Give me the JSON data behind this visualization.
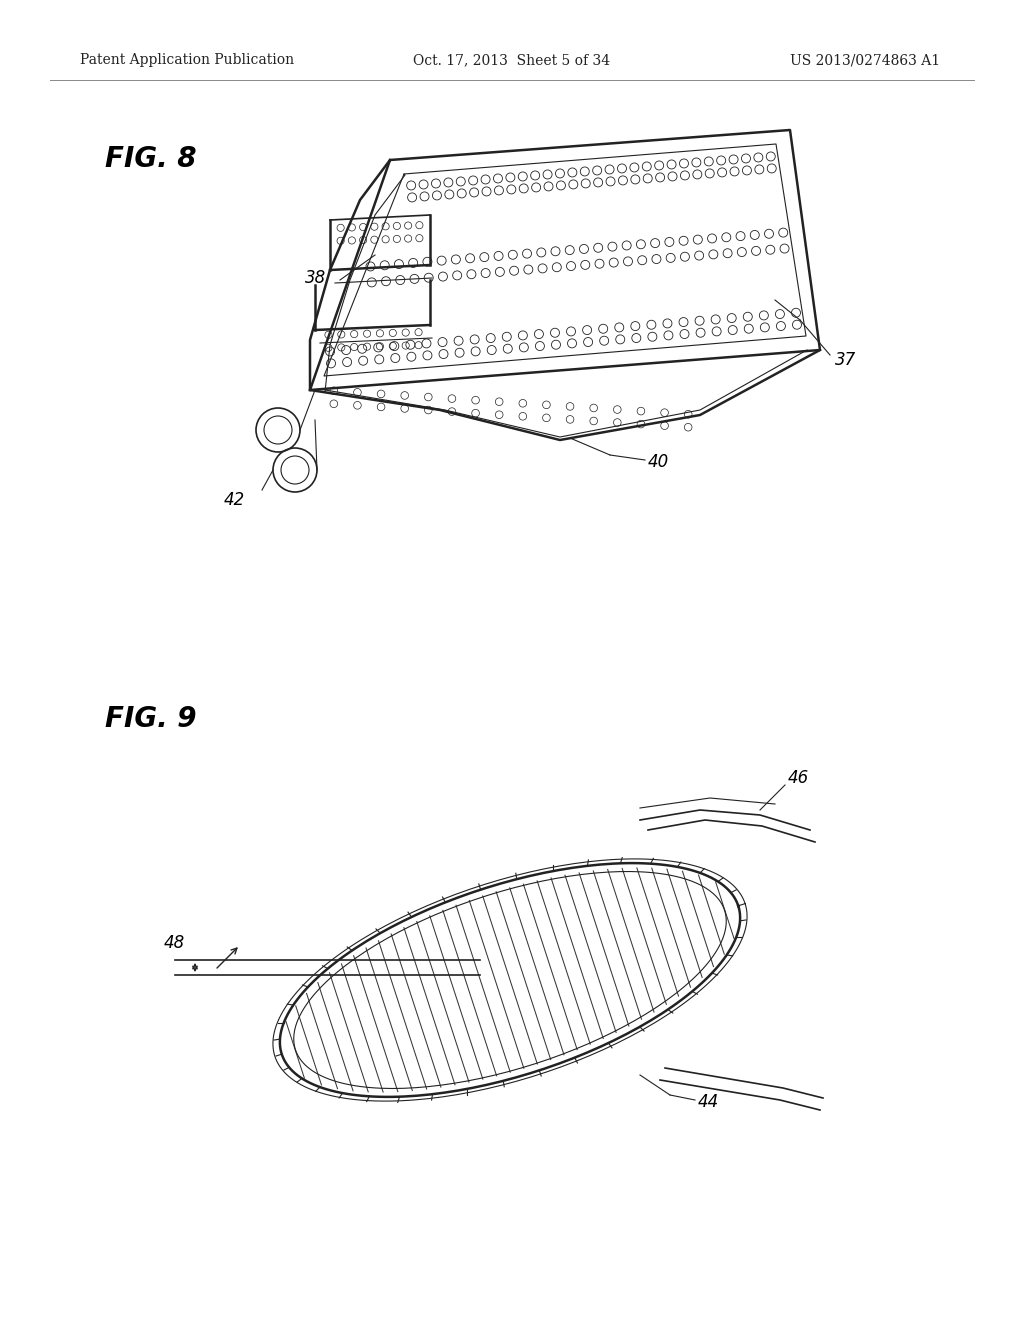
{
  "header_left": "Patent Application Publication",
  "header_center": "Oct. 17, 2013  Sheet 5 of 34",
  "header_right": "US 2013/0274863 A1",
  "fig8_label": "FIG. 8",
  "fig9_label": "FIG. 9",
  "bg_color": "#ffffff",
  "line_color": "#222222",
  "text_color": "#000000",
  "header_color": "#222222"
}
